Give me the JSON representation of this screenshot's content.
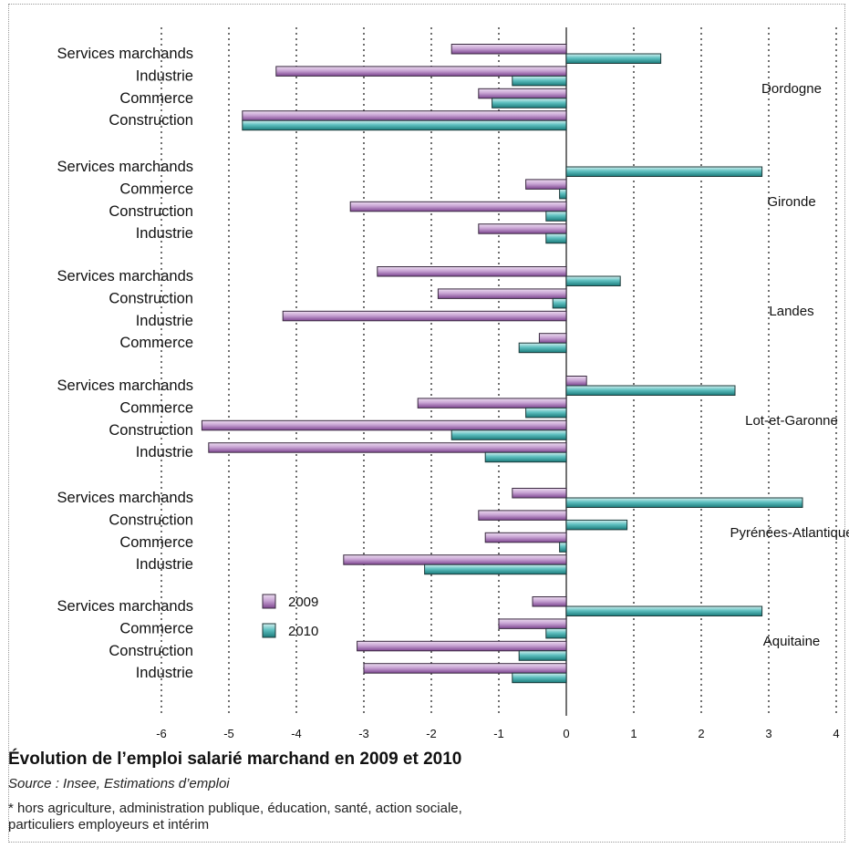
{
  "chart_data": {
    "type": "bar",
    "orientation": "horizontal",
    "title": "Évolution de l’emploi salarié marchand en 2009 et 2010",
    "source": "Source : Insee, Estimations d’emploi",
    "notes": [
      "* hors agriculture, administration publique, éducation, santé, action sociale,",
      "particuliers employeurs et intérim"
    ],
    "xlim": [
      -6,
      4
    ],
    "xticks": [
      "-6",
      "-5",
      "-4",
      "-3",
      "-2",
      "-1",
      "0",
      "1",
      "2",
      "3",
      "4"
    ],
    "grid": "vertical dotted",
    "legend_position": "bottom-left",
    "series": [
      {
        "name": "2009",
        "color": "#a070b0"
      },
      {
        "name": "2010",
        "color": "#2aa2a2"
      }
    ],
    "groups": [
      {
        "region": "Dordogne",
        "rows": [
          {
            "category": "Services marchands",
            "v2009": -1.7,
            "v2010": 1.4
          },
          {
            "category": "Industrie",
            "v2009": -4.3,
            "v2010": -0.8
          },
          {
            "category": "Commerce",
            "v2009": -1.3,
            "v2010": -1.1
          },
          {
            "category": "Construction",
            "v2009": -4.8,
            "v2010": -4.8
          }
        ]
      },
      {
        "region": "Gironde",
        "rows": [
          {
            "category": "Services marchands",
            "v2009": 0.0,
            "v2010": 2.9
          },
          {
            "category": "Commerce",
            "v2009": -0.6,
            "v2010": -0.1
          },
          {
            "category": "Construction",
            "v2009": -3.2,
            "v2010": -0.3
          },
          {
            "category": "Industrie",
            "v2009": -1.3,
            "v2010": -0.3
          }
        ]
      },
      {
        "region": "Landes",
        "rows": [
          {
            "category": "Services marchands",
            "v2009": -2.8,
            "v2010": 0.8
          },
          {
            "category": "Construction",
            "v2009": -1.9,
            "v2010": -0.2
          },
          {
            "category": "Industrie",
            "v2009": -4.2,
            "v2010": 0.0
          },
          {
            "category": "Commerce",
            "v2009": -0.4,
            "v2010": -0.7
          }
        ]
      },
      {
        "region": "Lot-et-Garonne",
        "rows": [
          {
            "category": "Services marchands",
            "v2009": 0.3,
            "v2010": 2.5
          },
          {
            "category": "Commerce",
            "v2009": -2.2,
            "v2010": -0.6
          },
          {
            "category": "Construction",
            "v2009": -5.4,
            "v2010": -1.7
          },
          {
            "category": "Industrie",
            "v2009": -5.3,
            "v2010": -1.2
          }
        ]
      },
      {
        "region": "Pyrénées-Atlantique",
        "rows": [
          {
            "category": "Services marchands",
            "v2009": -0.8,
            "v2010": 3.5
          },
          {
            "category": "Construction",
            "v2009": -1.3,
            "v2010": 0.9
          },
          {
            "category": "Commerce",
            "v2009": -1.2,
            "v2010": -0.1
          },
          {
            "category": "Industrie",
            "v2009": -3.3,
            "v2010": -2.1
          }
        ]
      },
      {
        "region": "Aquitaine",
        "rows": [
          {
            "category": "Services marchands",
            "v2009": -0.5,
            "v2010": 2.9
          },
          {
            "category": "Commerce",
            "v2009": -1.0,
            "v2010": -0.3
          },
          {
            "category": "Construction",
            "v2009": -3.1,
            "v2010": -0.7
          },
          {
            "category": "Industrie",
            "v2009": -3.0,
            "v2010": -0.8
          }
        ]
      }
    ]
  }
}
